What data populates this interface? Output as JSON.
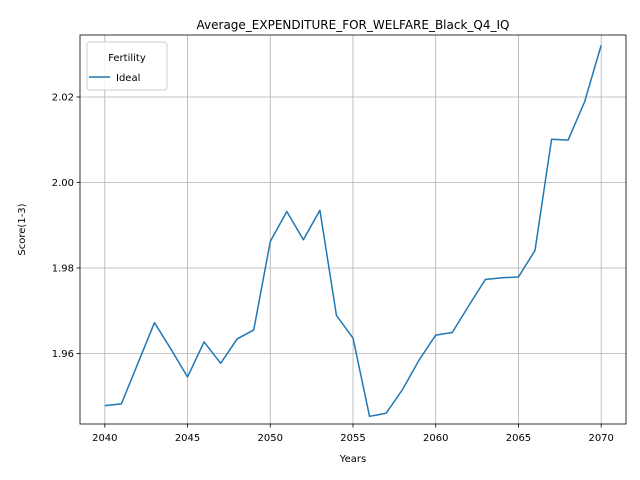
{
  "chart_data": {
    "type": "line",
    "title": "Average_EXPENDITURE_FOR_WELFARE_Black_Q4_IQ",
    "xlabel": "Years",
    "ylabel": "Score(1-3)",
    "xlim": [
      2038.5,
      2071.5
    ],
    "ylim": [
      1.9435,
      2.0345
    ],
    "x_ticks": [
      2040,
      2045,
      2050,
      2055,
      2060,
      2065,
      2070
    ],
    "y_ticks": [
      1.96,
      1.98,
      2.0,
      2.02
    ],
    "y_tick_labels": [
      "1.96",
      "1.98",
      "2.00",
      "2.02"
    ],
    "grid": true,
    "legend": {
      "title": "Fertility",
      "placement": "top-left"
    },
    "series": [
      {
        "name": "Ideal",
        "color": "#1f77b4",
        "x": [
          2040,
          2041,
          2042,
          2043,
          2044,
          2045,
          2046,
          2047,
          2048,
          2049,
          2050,
          2051,
          2052,
          2053,
          2054,
          2055,
          2056,
          2057,
          2058,
          2059,
          2060,
          2061,
          2062,
          2063,
          2064,
          2065,
          2066,
          2067,
          2068,
          2069,
          2070
        ],
        "y": [
          1.9478,
          1.9482,
          1.9577,
          1.9672,
          1.961,
          1.9545,
          1.9627,
          1.9577,
          1.9634,
          1.9655,
          1.9862,
          1.9932,
          1.9866,
          1.9935,
          1.9689,
          1.9636,
          1.9453,
          1.946,
          1.9516,
          1.9585,
          1.9643,
          1.9649,
          1.9712,
          1.9773,
          1.9777,
          1.9779,
          1.9841,
          2.0101,
          2.0099,
          2.0189,
          2.0321
        ]
      }
    ]
  }
}
